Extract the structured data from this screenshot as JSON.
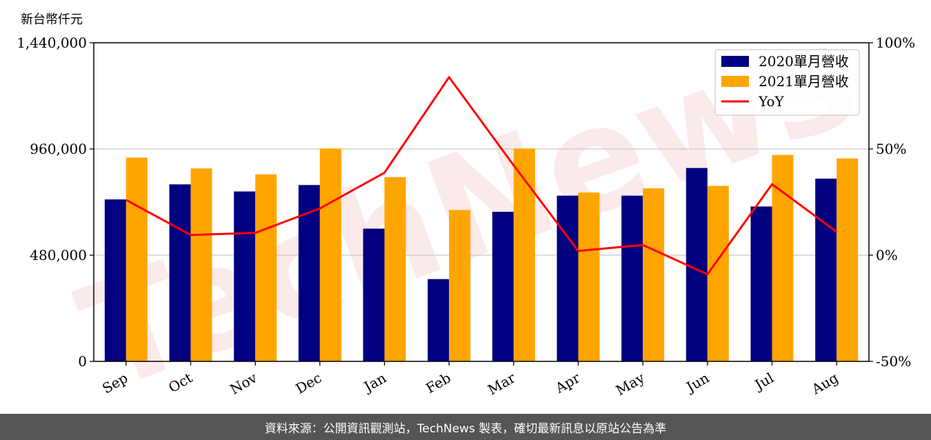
{
  "unit_label": "新台幣仟元",
  "footer_text": "資料來源：公開資訊觀測站，TechNews 製表，確切最新訊息以原站公告為準",
  "watermark_text": "TechNews",
  "chart_data": {
    "type": "bar",
    "categories": [
      "Sep",
      "Oct",
      "Nov",
      "Dec",
      "Jan",
      "Feb",
      "Mar",
      "Apr",
      "May",
      "Jun",
      "Jul",
      "Aug"
    ],
    "series": [
      {
        "name": "2020單月營收",
        "color": "#000080",
        "axis": "left",
        "type": "bar",
        "values": [
          732000,
          800000,
          768000,
          797000,
          600000,
          372000,
          676000,
          749000,
          749000,
          874000,
          700000,
          826000
        ]
      },
      {
        "name": "2021單月營收",
        "color": "#FFA500",
        "axis": "left",
        "type": "bar",
        "values": [
          921000,
          872000,
          845000,
          962000,
          833000,
          684000,
          962000,
          763000,
          782000,
          793000,
          933000,
          917000
        ]
      },
      {
        "name": "YoY",
        "color": "#FF0000",
        "axis": "right",
        "type": "line",
        "values": [
          26,
          9.5,
          10.5,
          22,
          38.8,
          83.8,
          42.3,
          2,
          4.8,
          -9,
          33.4,
          11
        ]
      }
    ],
    "ylim": [
      0,
      1440000
    ],
    "y_ticks": [
      "0",
      "480,000",
      "960,000",
      "1,440,000"
    ],
    "y_tick_values": [
      0,
      480000,
      960000,
      1440000
    ],
    "y2lim": [
      -50,
      100
    ],
    "y2_ticks": [
      "-50%",
      "0%",
      "50%",
      "100%"
    ],
    "y2_tick_values": [
      -50,
      0,
      50,
      100
    ],
    "grid": "horizontal",
    "legend_position": "top-right",
    "xlabel": "",
    "ylabel": ""
  }
}
